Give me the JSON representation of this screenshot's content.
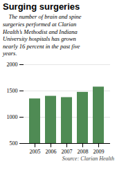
{
  "chart_data": {
    "type": "bar",
    "title": "Surging surgeries",
    "subtitle": "    The number of brain and spine\nsurgeries performed at Clarian\nHealth’s Methodist and Indiana\nUniversity hospitals has grown\nnearly 16 percent in the past five\nyears.",
    "source": "Source: Clarian Health",
    "categories": [
      "2005",
      "2006",
      "2007",
      "2008",
      "2009"
    ],
    "values": [
      1350,
      1400,
      1375,
      1475,
      1575
    ],
    "color": "#4f8b54",
    "ylim": [
      500,
      2000
    ],
    "yticks": [
      500,
      1000,
      1500,
      2000
    ],
    "grid": true
  }
}
